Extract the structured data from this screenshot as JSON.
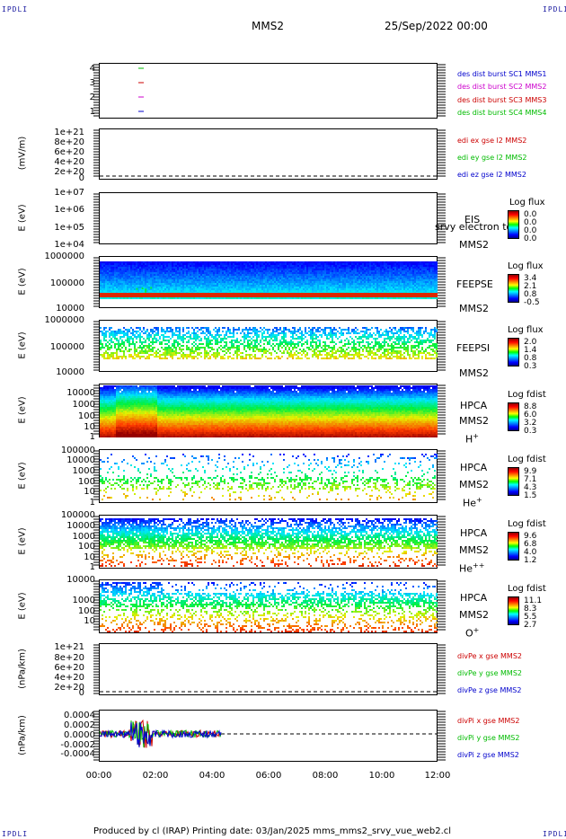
{
  "corners": {
    "tl": "IPDLI",
    "tr": "IPDLI",
    "bl": "IPDLI",
    "br": "IPDLI"
  },
  "header": {
    "spacecraft": "MMS2",
    "date": "25/Sep/2022 00:00"
  },
  "footer": "Produced by cl (IRAP)   Printing date: 03/Jan/2025   mms_mms2_srvy_vue_web2.cl",
  "xaxis": {
    "ticks": [
      "00:00",
      "02:00",
      "04:00",
      "06:00",
      "08:00",
      "10:00",
      "12:00"
    ]
  },
  "panels": {
    "p1": {
      "yticks": [
        "4",
        "3",
        "2",
        "1"
      ],
      "legend": [
        {
          "text": "des dist burst SC1 MMS1",
          "color": "#0000cc"
        },
        {
          "text": "des dist burst SC2 MMS2",
          "color": "#cc00cc"
        },
        {
          "text": "des dist burst SC3 MMS3",
          "color": "#cc0000"
        },
        {
          "text": "des dist burst SC4 MMS4",
          "color": "#00bb00"
        }
      ]
    },
    "p2": {
      "ylabel": "(mV/m)",
      "yticks": [
        "1e+21",
        "8e+20",
        "6e+20",
        "4e+20",
        "2e+20",
        "0"
      ],
      "legend": [
        {
          "text": "edi ex gse l2 MMS2",
          "color": "#cc0000"
        },
        {
          "text": "edi ey gse l2 MMS2",
          "color": "#00bb00"
        },
        {
          "text": "edi ez gse l2 MMS2",
          "color": "#0000cc"
        }
      ]
    },
    "p3": {
      "ylabel": "E (eV)",
      "yticks": [
        "1e+07",
        "1e+06",
        "1e+05",
        "1e+04"
      ],
      "inst": "EIS",
      "overlay": "srvy electron to",
      "sc": "MMS2",
      "cbtitle": "Log flux",
      "cbvals": [
        "0.0",
        "0.0",
        "0.0",
        "0.0"
      ]
    },
    "p4": {
      "ylabel": "E (eV)",
      "yticks": [
        "1000000",
        "100000",
        "10000"
      ],
      "inst": "FEEPSE",
      "sc": "MMS2",
      "cbtitle": "Log flux",
      "cbvals": [
        "3.4",
        "2.1",
        "0.8",
        "-0.5"
      ]
    },
    "p5": {
      "ylabel": "E (eV)",
      "yticks": [
        "1000000",
        "100000",
        "10000"
      ],
      "inst": "FEEPSI",
      "sc": "MMS2",
      "cbtitle": "Log flux",
      "cbvals": [
        "2.0",
        "1.4",
        "0.8",
        "0.3"
      ]
    },
    "p6": {
      "ylabel": "E (eV)",
      "yticks": [
        "10000",
        "1000",
        "100",
        "10",
        "1"
      ],
      "inst": "HPCA",
      "sc": "MMS2",
      "species": "H",
      "sup": "+",
      "cbtitle": "Log fdist",
      "cbvals": [
        "8.8",
        "6.0",
        "3.2",
        "0.3"
      ]
    },
    "p7": {
      "ylabel": "E (eV)",
      "yticks": [
        "100000",
        "10000",
        "1000",
        "100",
        "10",
        "1"
      ],
      "inst": "HPCA",
      "sc": "MMS2",
      "species": "He",
      "sup": "+",
      "cbtitle": "Log fdist",
      "cbvals": [
        "9.9",
        "7.1",
        "4.3",
        "1.5"
      ]
    },
    "p8": {
      "ylabel": "E (eV)",
      "yticks": [
        "100000",
        "10000",
        "1000",
        "100",
        "10",
        "1"
      ],
      "inst": "HPCA",
      "sc": "MMS2",
      "species": "He",
      "sup": "++",
      "cbtitle": "Log fdist",
      "cbvals": [
        "9.6",
        "6.8",
        "4.0",
        "1.2"
      ]
    },
    "p9": {
      "ylabel": "E (eV)",
      "yticks": [
        "10000",
        "1000",
        "100",
        "10"
      ],
      "inst": "HPCA",
      "sc": "MMS2",
      "species": "O",
      "sup": "+",
      "cbtitle": "Log fdist",
      "cbvals": [
        "11.1",
        "8.3",
        "5.5",
        "2.7"
      ]
    },
    "p10": {
      "ylabel": "(nPa/km)",
      "yticks": [
        "1e+21",
        "8e+20",
        "6e+20",
        "4e+20",
        "2e+20",
        "0"
      ],
      "legend": [
        {
          "text": "divPe x gse MMS2",
          "color": "#cc0000"
        },
        {
          "text": "divPe y gse MMS2",
          "color": "#00bb00"
        },
        {
          "text": "divPe z gse MMS2",
          "color": "#0000cc"
        }
      ]
    },
    "p11": {
      "ylabel": "(nPa/km)",
      "yticks": [
        "0.0004",
        "0.0002",
        "0.0000",
        "-0.0002",
        "-0.0004"
      ],
      "legend": [
        {
          "text": "divPi x gse MMS2",
          "color": "#cc0000"
        },
        {
          "text": "divPi y gse MMS2",
          "color": "#00bb00"
        },
        {
          "text": "divPi z gse MMS2",
          "color": "#0000cc"
        }
      ]
    }
  },
  "chart_data": {
    "type": "heatmap",
    "x_range": [
      "00:00",
      "12:00"
    ],
    "note_values": "stacked time-series panels; spectrograms of energy vs time",
    "burst_markers": [
      {
        "sc": "MMS1",
        "y": 1,
        "t": "01:30"
      },
      {
        "sc": "MMS2",
        "y": 2,
        "t": "01:30"
      },
      {
        "sc": "MMS3",
        "y": 3,
        "t": "01:30"
      },
      {
        "sc": "MMS4",
        "y": 4,
        "t": "01:30"
      }
    ],
    "divPi_range": [
      -0.0004,
      0.0004
    ],
    "divPi_data_end": "04:20"
  }
}
